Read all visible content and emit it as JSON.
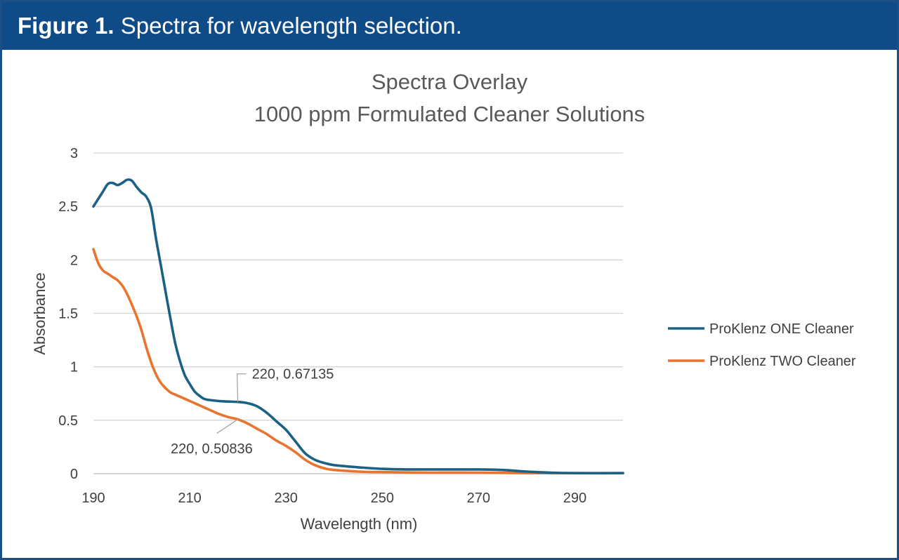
{
  "figure": {
    "label": "Figure 1.",
    "caption": "Spectra for wavelength selection."
  },
  "colors": {
    "banner": "#0f4b87",
    "border": "#1b4f86",
    "series_one": "#1b6185",
    "series_two": "#e8742e",
    "grid": "#d4d4d4",
    "text": "#404040"
  },
  "chart_data": {
    "type": "line",
    "title": [
      "Spectra Overlay",
      "1000 ppm Formulated Cleaner Solutions"
    ],
    "xlabel": "Wavelength (nm)",
    "ylabel": "Absorbance",
    "xlim": [
      190,
      300
    ],
    "ylim": [
      0,
      3
    ],
    "xticks": [
      190,
      210,
      230,
      250,
      270,
      290
    ],
    "yticks": [
      0,
      0.5,
      1,
      1.5,
      2,
      2.5,
      3
    ],
    "ytick_labels": [
      "0",
      "0.5",
      "1",
      "1.5",
      "2",
      "2.5",
      "3"
    ],
    "grid": true,
    "legend_position": "right",
    "series": [
      {
        "name": "ProKlenz ONE Cleaner",
        "color": "#1b6185",
        "x": [
          190,
          192,
          193,
          194,
          195,
          196,
          197,
          198,
          199,
          200,
          201,
          202,
          203,
          204,
          205,
          206,
          207,
          208,
          209,
          210,
          211,
          212,
          213,
          214,
          216,
          218,
          220,
          222,
          224,
          226,
          228,
          230,
          232,
          234,
          236,
          238,
          240,
          245,
          250,
          255,
          260,
          265,
          270,
          275,
          280,
          285,
          290,
          300
        ],
        "y": [
          2.5,
          2.64,
          2.71,
          2.72,
          2.7,
          2.72,
          2.75,
          2.74,
          2.68,
          2.63,
          2.59,
          2.48,
          2.2,
          1.95,
          1.7,
          1.45,
          1.22,
          1.05,
          0.92,
          0.84,
          0.77,
          0.73,
          0.7,
          0.69,
          0.68,
          0.675,
          0.67135,
          0.66,
          0.63,
          0.57,
          0.49,
          0.41,
          0.3,
          0.19,
          0.13,
          0.1,
          0.08,
          0.06,
          0.045,
          0.04,
          0.04,
          0.04,
          0.04,
          0.035,
          0.02,
          0.01,
          0.005,
          0.005
        ]
      },
      {
        "name": "ProKlenz TWO Cleaner",
        "color": "#e8742e",
        "x": [
          190,
          191,
          192,
          193,
          194,
          195,
          196,
          197,
          198,
          199,
          200,
          201,
          202,
          203,
          204,
          205,
          206,
          207,
          208,
          210,
          212,
          214,
          216,
          218,
          220,
          222,
          224,
          226,
          228,
          230,
          232,
          234,
          236,
          238,
          240,
          245,
          250,
          260,
          270,
          280,
          290,
          300
        ],
        "y": [
          2.1,
          1.97,
          1.9,
          1.87,
          1.84,
          1.81,
          1.76,
          1.68,
          1.58,
          1.47,
          1.34,
          1.18,
          1.04,
          0.93,
          0.85,
          0.8,
          0.76,
          0.74,
          0.72,
          0.68,
          0.64,
          0.6,
          0.56,
          0.53,
          0.50836,
          0.47,
          0.42,
          0.37,
          0.31,
          0.26,
          0.2,
          0.13,
          0.08,
          0.05,
          0.035,
          0.02,
          0.015,
          0.01,
          0.01,
          0.005,
          0.005,
          0.005
        ]
      }
    ],
    "annotations": [
      {
        "label": "220, 0.67135",
        "x": 220,
        "y": 0.67135,
        "series": 0
      },
      {
        "label": "220, 0.50836",
        "x": 220,
        "y": 0.50836,
        "series": 1
      }
    ]
  }
}
